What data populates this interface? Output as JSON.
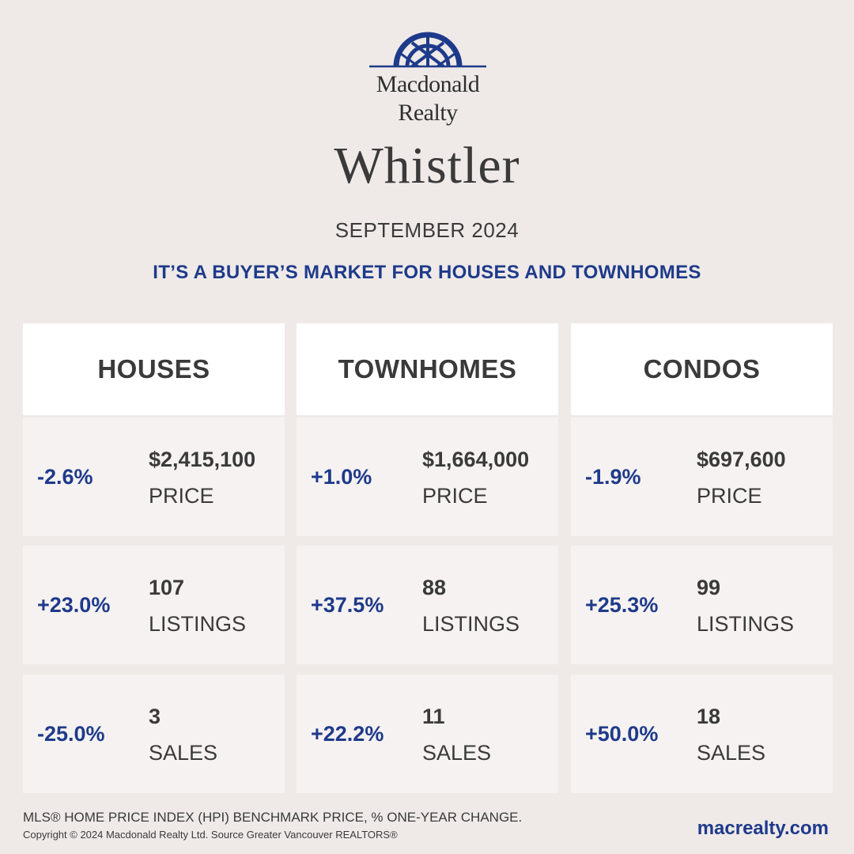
{
  "brand": {
    "line1": "Macdonald",
    "line2": "Realty",
    "color": "#1e3a8a"
  },
  "city": "Whistler",
  "period": "SEPTEMBER 2024",
  "headline": "IT’S A BUYER’S MARKET FOR HOUSES AND TOWNHOMES",
  "columns": [
    {
      "title": "HOUSES",
      "stats": [
        {
          "change": "-2.6%",
          "value": "$2,415,100",
          "metric": "PRICE"
        },
        {
          "change": "+23.0%",
          "value": "107",
          "metric": "LISTINGS"
        },
        {
          "change": "-25.0%",
          "value": "3",
          "metric": "SALES"
        }
      ]
    },
    {
      "title": "TOWNHOMES",
      "stats": [
        {
          "change": "+1.0%",
          "value": "$1,664,000",
          "metric": "PRICE"
        },
        {
          "change": "+37.5%",
          "value": "88",
          "metric": "LISTINGS"
        },
        {
          "change": "+22.2%",
          "value": "11",
          "metric": "SALES"
        }
      ]
    },
    {
      "title": "CONDOS",
      "stats": [
        {
          "change": "-1.9%",
          "value": "$697,600",
          "metric": "PRICE"
        },
        {
          "change": "+25.3%",
          "value": "99",
          "metric": "LISTINGS"
        },
        {
          "change": "+50.0%",
          "value": "18",
          "metric": "SALES"
        }
      ]
    }
  ],
  "footnote": "MLS® HOME PRICE INDEX (HPI) BENCHMARK PRICE, % ONE-YEAR CHANGE.",
  "copyright": "Copyright © 2024 Macdonald Realty Ltd. Source Greater Vancouver REALTORS®",
  "website": "macrealty.com",
  "colors": {
    "accent": "#1e3a8a",
    "background": "#efeae8",
    "card": "#f6f2f1",
    "header": "#ffffff",
    "text": "#3a3a3a"
  }
}
